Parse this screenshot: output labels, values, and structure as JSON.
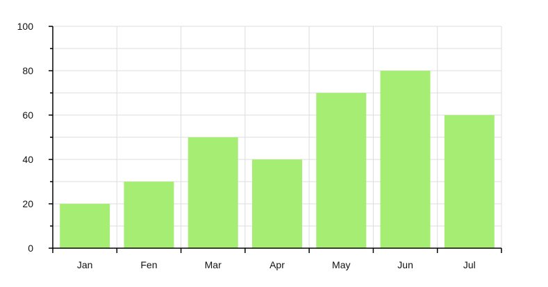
{
  "chart_data": {
    "type": "bar",
    "title": "",
    "xlabel": "",
    "ylabel": "",
    "categories": [
      "Jan",
      "Fen",
      "Mar",
      "Apr",
      "May",
      "Jun",
      "Jul"
    ],
    "values": [
      20,
      30,
      50,
      40,
      70,
      80,
      60
    ],
    "ylim": [
      0,
      100
    ],
    "yticks": [
      0,
      20,
      40,
      60,
      80,
      100
    ],
    "grid": true,
    "legend": "none",
    "colors": {
      "bar": "#a6ee73",
      "grid": "#dddddd",
      "axis": "#000000",
      "text": "#111111"
    }
  }
}
